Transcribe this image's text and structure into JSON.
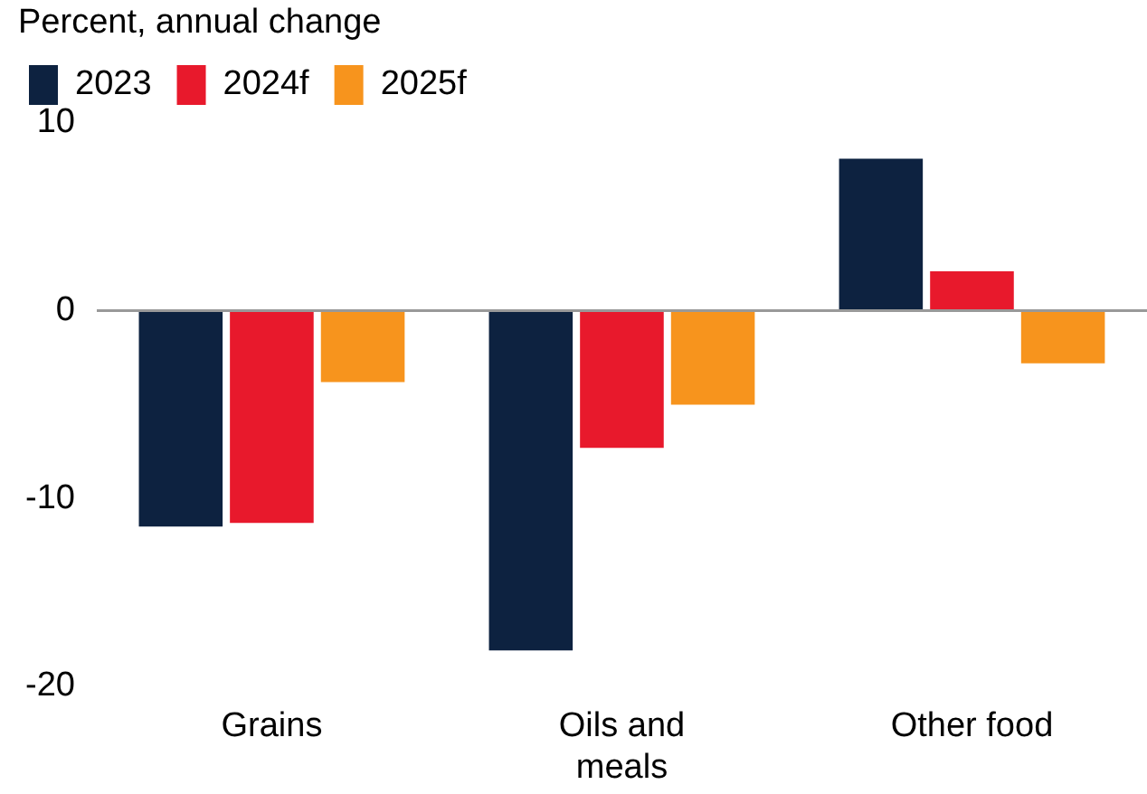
{
  "chart_data": {
    "type": "bar",
    "ylabel": "Percent, annual change",
    "categories": [
      "Grains",
      "Oils and\nmeals",
      "Other food"
    ],
    "series": [
      {
        "name": "2023",
        "color": "#0d2240",
        "values": [
          -11.5,
          -18.1,
          8.1
        ]
      },
      {
        "name": "2024f",
        "color": "#e8192c",
        "values": [
          -11.3,
          -7.3,
          2.1
        ]
      },
      {
        "name": "2025f",
        "color": "#f7941d",
        "values": [
          -3.8,
          -5.0,
          -2.8
        ]
      }
    ],
    "ylim": [
      -20,
      10
    ],
    "yticks": [
      -20,
      -10,
      0,
      10
    ],
    "legend": "top left"
  }
}
